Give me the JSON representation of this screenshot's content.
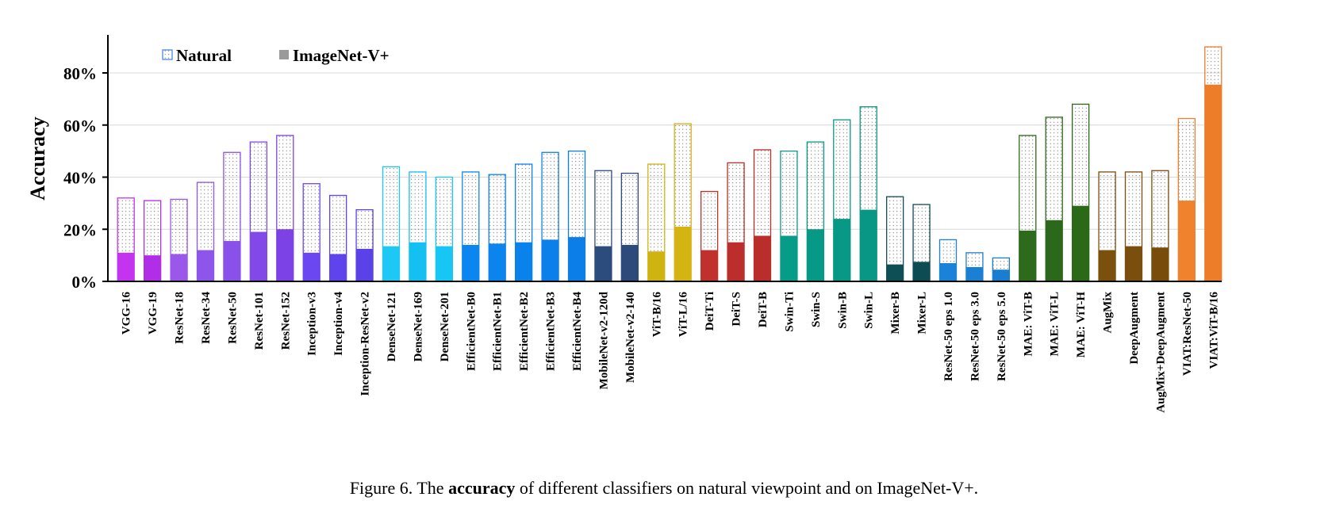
{
  "chart_data": {
    "type": "bar",
    "ylabel": "Accuracy",
    "ylim": [
      0,
      0.8
    ],
    "yticks": [
      "0%",
      "20%",
      "40%",
      "60%",
      "80%"
    ],
    "legend": {
      "placement": "top-left",
      "entries": [
        "Natural",
        "ImageNet-V+"
      ]
    },
    "categories": [
      "VGG-16",
      "VGG-19",
      "ResNet-18",
      "ResNet-34",
      "ResNet-50",
      "ResNet-101",
      "ResNet-152",
      "Inception-v3",
      "Inception-v4",
      "Inception-ResNet-v2",
      "DenseNet-121",
      "DenseNet-169",
      "DenseNet-201",
      "EfficientNet-B0",
      "EfficientNet-B1",
      "EfficientNet-B2",
      "EfficientNet-B3",
      "EfficientNet-B4",
      "MobileNet-v2-120d",
      "MobileNet-v2-140",
      "ViT-B/16",
      "ViT-L/16",
      "DeiT-Ti",
      "DeiT-S",
      "DeiT-B",
      "Swin-Ti",
      "Swin-S",
      "Swin-B",
      "Swin-L",
      "Mixer-B",
      "Mixer-L",
      "ResNet-50 eps 1.0",
      "ResNet-50 eps 3.0",
      "ResNet-50 eps 5.0",
      "MAE: ViT-B",
      "MAE: ViT-L",
      "MAE: ViT-H",
      "AugMix",
      "DeepAugment",
      "AugMix+DeepAugment",
      "VIAT:ResNet-50",
      "VIAT:ViT-B/16"
    ],
    "series": [
      {
        "name": "Natural",
        "values": [
          0.32,
          0.31,
          0.315,
          0.38,
          0.495,
          0.535,
          0.56,
          0.375,
          0.33,
          0.275,
          0.44,
          0.42,
          0.4,
          0.42,
          0.41,
          0.45,
          0.495,
          0.5,
          0.425,
          0.415,
          0.45,
          0.605,
          0.345,
          0.455,
          0.505,
          0.5,
          0.535,
          0.62,
          0.67,
          0.325,
          0.295,
          0.16,
          0.11,
          0.09,
          0.56,
          0.63,
          0.68,
          0.42,
          0.42,
          0.425,
          0.625,
          0.9
        ]
      },
      {
        "name": "ImageNet-V+",
        "values": [
          0.11,
          0.1,
          0.105,
          0.12,
          0.155,
          0.19,
          0.2,
          0.11,
          0.105,
          0.125,
          0.135,
          0.15,
          0.135,
          0.14,
          0.145,
          0.15,
          0.16,
          0.17,
          0.135,
          0.14,
          0.115,
          0.21,
          0.12,
          0.15,
          0.175,
          0.175,
          0.2,
          0.24,
          0.275,
          0.065,
          0.075,
          0.07,
          0.055,
          0.045,
          0.195,
          0.235,
          0.29,
          0.12,
          0.135,
          0.13,
          0.31,
          0.755
        ]
      }
    ],
    "colors": [
      "#c433f0",
      "#b02ee8",
      "#9a57ea",
      "#8e55ea",
      "#8a50ea",
      "#8248e8",
      "#7c42e6",
      "#6a47f0",
      "#5f44ee",
      "#5a42e8",
      "#1ec8f4",
      "#14c0f2",
      "#16c6f5",
      "#0b86f0",
      "#0c84ee",
      "#0a82ec",
      "#0c80ea",
      "#0b7ee8",
      "#2d4c7e",
      "#2e4a7a",
      "#cfb411",
      "#d4b412",
      "#c0302c",
      "#bc2e2b",
      "#b92d2a",
      "#079c88",
      "#069a86",
      "#079886",
      "#079784",
      "#0e4f55",
      "#0d4c52",
      "#1a82d8",
      "#1b80d4",
      "#197ed2",
      "#2d6a1c",
      "#2c6819",
      "#2b6817",
      "#7b4f0c",
      "#7a4e0c",
      "#784d0b",
      "#f0822e",
      "#ee7d2a"
    ]
  },
  "caption": {
    "prefix": "Figure 6. The ",
    "bold": "accuracy",
    "suffix": " of different classifiers on natural viewpoint and on ImageNet-V+."
  }
}
